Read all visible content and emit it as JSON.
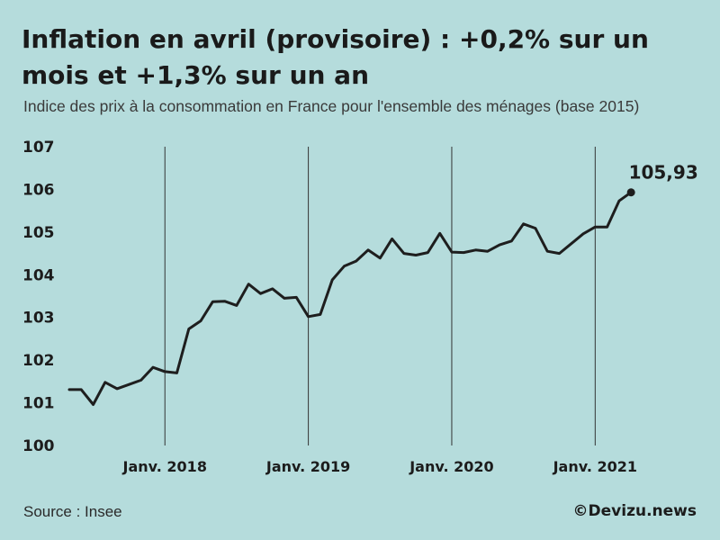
{
  "header": {
    "title": "Inflation en avril (provisoire) : +0,2% sur un mois et +1,3% sur un an",
    "subtitle": "Indice des prix à la consommation en France pour l'ensemble des ménages (base 2015)"
  },
  "footer": {
    "source": "Source : Insee",
    "credit": "©Devizu.news"
  },
  "colors": {
    "background": "#b5dcdc",
    "line": "#1e1e1e"
  },
  "chart_data": {
    "type": "line",
    "title": "Inflation en avril (provisoire) : +0,2% sur un mois et +1,3% sur un an",
    "subtitle": "Indice des prix à la consommation en France pour l'ensemble des ménages (base 2015)",
    "xlabel": "",
    "ylabel": "",
    "ylim": [
      100,
      107
    ],
    "yticks": [
      100,
      101,
      102,
      103,
      104,
      105,
      106,
      107
    ],
    "ytick_labels": [
      "100",
      "101",
      "102",
      "103",
      "104",
      "105",
      "106",
      "107"
    ],
    "xticks": [
      {
        "label": "Janv. 2018",
        "month_index": 8
      },
      {
        "label": "Janv. 2019",
        "month_index": 20
      },
      {
        "label": "Janv. 2020",
        "month_index": 32
      },
      {
        "label": "Janv. 2021",
        "month_index": 44
      }
    ],
    "grid": "vertical lines at January",
    "x_start": "2017-05",
    "x_end": "2021-04",
    "series": [
      {
        "values": [
          101.31,
          101.31,
          100.96,
          101.48,
          101.33,
          101.43,
          101.53,
          101.83,
          101.73,
          101.7,
          102.73,
          102.92,
          103.37,
          103.38,
          103.28,
          103.78,
          103.56,
          103.67,
          103.45,
          103.47,
          103.02,
          103.07,
          103.88,
          104.2,
          104.32,
          104.58,
          104.39,
          104.84,
          104.5,
          104.46,
          104.52,
          104.97,
          104.53,
          104.52,
          104.58,
          104.55,
          104.7,
          104.79,
          105.19,
          105.09,
          104.55,
          104.5,
          104.73,
          104.96,
          105.12,
          105.12,
          105.73,
          105.93
        ]
      }
    ],
    "last_point_label": "105,93",
    "legend": "none"
  }
}
